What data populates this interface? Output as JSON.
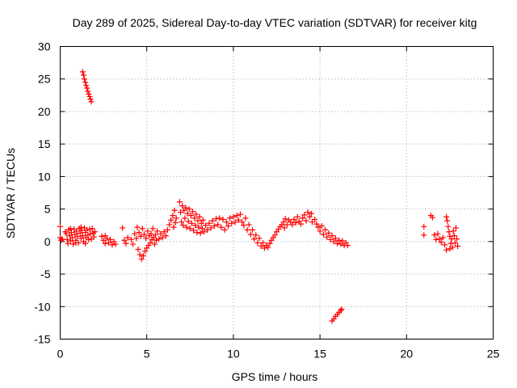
{
  "chart_data": {
    "type": "scatter",
    "title": "Day 289 of 2025, Sidereal Day-to-day VTEC variation (SDTVAR) for receiver kitg",
    "xlabel": "GPS time / hours",
    "ylabel": "SDTVAR / TECUs",
    "xlim": [
      0,
      25
    ],
    "ylim": [
      -15,
      30
    ],
    "xticks": [
      0,
      5,
      10,
      15,
      20,
      25
    ],
    "yticks": [
      -15,
      -10,
      -5,
      0,
      5,
      10,
      15,
      20,
      25,
      30
    ],
    "grid": true,
    "marker": "plus",
    "series": [
      {
        "name": "SDTVAR",
        "color": "#ff0000",
        "points": [
          [
            0.0,
            2.3
          ],
          [
            0.0,
            0.6
          ],
          [
            0.05,
            0.2
          ],
          [
            0.1,
            0.4
          ],
          [
            0.3,
            1.5
          ],
          [
            0.35,
            1.2
          ],
          [
            0.4,
            0.3
          ],
          [
            0.45,
            -0.3
          ],
          [
            0.5,
            1.8
          ],
          [
            0.55,
            0.9
          ],
          [
            0.6,
            0.1
          ],
          [
            0.65,
            1.4
          ],
          [
            0.7,
            0.6
          ],
          [
            0.75,
            -0.4
          ],
          [
            0.8,
            1.9
          ],
          [
            0.85,
            1.1
          ],
          [
            0.9,
            0.2
          ],
          [
            0.95,
            1.6
          ],
          [
            1.0,
            0.8
          ],
          [
            1.05,
            -0.2
          ],
          [
            1.1,
            2.0
          ],
          [
            1.15,
            1.3
          ],
          [
            1.2,
            0.5
          ],
          [
            1.25,
            1.7
          ],
          [
            1.3,
            0.9
          ],
          [
            1.35,
            0.0
          ],
          [
            1.4,
            2.1
          ],
          [
            1.45,
            1.4
          ],
          [
            1.5,
            0.6
          ],
          [
            1.55,
            1.8
          ],
          [
            1.6,
            1.0
          ],
          [
            1.65,
            0.3
          ],
          [
            1.7,
            1.9
          ],
          [
            1.75,
            1.2
          ],
          [
            1.8,
            0.4
          ],
          [
            1.85,
            2.0
          ],
          [
            1.9,
            1.3
          ],
          [
            1.95,
            0.7
          ],
          [
            2.0,
            1.5
          ],
          [
            1.45,
            -0.3
          ],
          [
            1.2,
            2.2
          ],
          [
            0.9,
            -0.2
          ],
          [
            0.6,
            2.0
          ],
          [
            1.3,
            26.1
          ],
          [
            1.35,
            25.6
          ],
          [
            1.4,
            25.0
          ],
          [
            1.45,
            24.5
          ],
          [
            1.5,
            24.0
          ],
          [
            1.55,
            23.6
          ],
          [
            1.6,
            23.1
          ],
          [
            1.65,
            22.7
          ],
          [
            1.7,
            22.3
          ],
          [
            1.75,
            21.9
          ],
          [
            1.8,
            21.5
          ],
          [
            2.4,
            0.8
          ],
          [
            2.5,
            0.2
          ],
          [
            2.6,
            -0.3
          ],
          [
            2.7,
            0.5
          ],
          [
            2.8,
            -0.2
          ],
          [
            2.9,
            0.3
          ],
          [
            3.0,
            -0.5
          ],
          [
            3.1,
            0.0
          ],
          [
            3.2,
            -0.4
          ],
          [
            2.6,
            0.9
          ],
          [
            3.6,
            2.1
          ],
          [
            3.7,
            0.2
          ],
          [
            3.8,
            -0.3
          ],
          [
            3.9,
            0.6
          ],
          [
            4.1,
            0.3
          ],
          [
            4.2,
            -0.4
          ],
          [
            4.3,
            1.2
          ],
          [
            4.4,
            0.5
          ],
          [
            4.45,
            2.2
          ],
          [
            4.5,
            -1.2
          ],
          [
            4.55,
            1.4
          ],
          [
            4.6,
            -2.0
          ],
          [
            4.65,
            0.8
          ],
          [
            4.7,
            -2.7
          ],
          [
            4.75,
            2.0
          ],
          [
            4.8,
            -2.2
          ],
          [
            4.85,
            1.1
          ],
          [
            4.9,
            -1.5
          ],
          [
            4.95,
            0.5
          ],
          [
            5.0,
            -1.0
          ],
          [
            5.05,
            1.6
          ],
          [
            5.1,
            -0.6
          ],
          [
            5.15,
            0.9
          ],
          [
            5.2,
            -0.2
          ],
          [
            5.25,
            1.2
          ],
          [
            5.3,
            0.3
          ],
          [
            5.35,
            2.0
          ],
          [
            5.4,
            0.6
          ],
          [
            5.45,
            -0.4
          ],
          [
            5.5,
            1.0
          ],
          [
            5.55,
            0.2
          ],
          [
            5.6,
            1.6
          ],
          [
            5.7,
            0.4
          ],
          [
            5.8,
            1.2
          ],
          [
            5.9,
            0.6
          ],
          [
            6.0,
            1.5
          ],
          [
            6.1,
            0.9
          ],
          [
            6.2,
            1.8
          ],
          [
            6.3,
            2.6
          ],
          [
            6.4,
            3.3
          ],
          [
            6.5,
            4.0
          ],
          [
            6.55,
            2.2
          ],
          [
            6.6,
            4.8
          ],
          [
            6.65,
            2.9
          ],
          [
            6.7,
            3.6
          ],
          [
            6.9,
            6.1
          ],
          [
            6.95,
            4.5
          ],
          [
            7.0,
            3.0
          ],
          [
            7.05,
            5.5
          ],
          [
            7.1,
            2.5
          ],
          [
            7.15,
            4.8
          ],
          [
            7.2,
            3.6
          ],
          [
            7.25,
            5.2
          ],
          [
            7.3,
            2.2
          ],
          [
            7.35,
            4.3
          ],
          [
            7.4,
            3.1
          ],
          [
            7.45,
            5.0
          ],
          [
            7.5,
            2.0
          ],
          [
            7.55,
            4.0
          ],
          [
            7.6,
            2.8
          ],
          [
            7.65,
            4.6
          ],
          [
            7.7,
            1.7
          ],
          [
            7.75,
            3.6
          ],
          [
            7.8,
            2.5
          ],
          [
            7.85,
            4.2
          ],
          [
            7.9,
            1.4
          ],
          [
            7.95,
            3.2
          ],
          [
            8.0,
            2.2
          ],
          [
            8.05,
            3.8
          ],
          [
            8.1,
            1.3
          ],
          [
            8.15,
            2.8
          ],
          [
            8.2,
            2.0
          ],
          [
            8.25,
            3.3
          ],
          [
            8.3,
            1.5
          ],
          [
            8.4,
            2.5
          ],
          [
            8.5,
            1.8
          ],
          [
            8.6,
            2.8
          ],
          [
            8.7,
            2.1
          ],
          [
            8.8,
            3.2
          ],
          [
            8.9,
            2.4
          ],
          [
            9.0,
            3.5
          ],
          [
            9.1,
            2.6
          ],
          [
            9.2,
            3.6
          ],
          [
            9.3,
            2.2
          ],
          [
            9.4,
            3.4
          ],
          [
            9.5,
            1.8
          ],
          [
            9.6,
            3.0
          ],
          [
            9.7,
            2.4
          ],
          [
            9.8,
            3.6
          ],
          [
            9.9,
            2.8
          ],
          [
            10.0,
            3.8
          ],
          [
            10.1,
            3.0
          ],
          [
            10.2,
            4.0
          ],
          [
            10.3,
            3.3
          ],
          [
            10.4,
            4.2
          ],
          [
            10.5,
            3.0
          ],
          [
            10.6,
            2.5
          ],
          [
            10.7,
            3.6
          ],
          [
            10.8,
            1.8
          ],
          [
            10.9,
            2.6
          ],
          [
            11.0,
            1.1
          ],
          [
            11.1,
            1.8
          ],
          [
            11.2,
            0.4
          ],
          [
            11.3,
            1.0
          ],
          [
            11.4,
            -0.2
          ],
          [
            11.5,
            0.5
          ],
          [
            11.6,
            -0.7
          ],
          [
            11.7,
            -0.2
          ],
          [
            11.8,
            -1.0
          ],
          [
            11.9,
            -0.6
          ],
          [
            12.0,
            -0.9
          ],
          [
            12.1,
            -0.3
          ],
          [
            12.2,
            0.2
          ],
          [
            12.3,
            0.6
          ],
          [
            12.4,
            1.0
          ],
          [
            12.5,
            1.5
          ],
          [
            12.6,
            1.9
          ],
          [
            12.7,
            2.3
          ],
          [
            12.8,
            2.6
          ],
          [
            12.9,
            3.0
          ],
          [
            13.0,
            3.5
          ],
          [
            12.95,
            2.1
          ],
          [
            13.1,
            2.6
          ],
          [
            13.2,
            3.3
          ],
          [
            13.3,
            3.0
          ],
          [
            13.4,
            2.6
          ],
          [
            13.5,
            3.4
          ],
          [
            13.6,
            2.9
          ],
          [
            13.7,
            3.8
          ],
          [
            13.8,
            3.1
          ],
          [
            13.9,
            2.7
          ],
          [
            14.0,
            3.6
          ],
          [
            14.1,
            4.1
          ],
          [
            14.2,
            3.2
          ],
          [
            14.3,
            4.5
          ],
          [
            14.4,
            3.8
          ],
          [
            14.5,
            4.3
          ],
          [
            14.55,
            3.0
          ],
          [
            14.7,
            3.4
          ],
          [
            14.8,
            2.7
          ],
          [
            14.9,
            2.2
          ],
          [
            15.0,
            1.6
          ],
          [
            15.1,
            2.4
          ],
          [
            15.2,
            1.1
          ],
          [
            15.3,
            1.8
          ],
          [
            15.4,
            0.7
          ],
          [
            15.5,
            1.3
          ],
          [
            15.6,
            0.3
          ],
          [
            15.7,
            0.9
          ],
          [
            15.8,
            0.0
          ],
          [
            15.9,
            0.5
          ],
          [
            16.0,
            -0.3
          ],
          [
            16.1,
            0.2
          ],
          [
            16.2,
            -0.4
          ],
          [
            16.3,
            0.1
          ],
          [
            16.4,
            -0.6
          ],
          [
            16.5,
            -0.2
          ],
          [
            16.6,
            -0.6
          ],
          [
            15.7,
            -12.2
          ],
          [
            15.8,
            -11.9
          ],
          [
            15.9,
            -11.5
          ],
          [
            16.0,
            -11.2
          ],
          [
            16.1,
            -10.9
          ],
          [
            16.2,
            -10.6
          ],
          [
            16.25,
            -10.4
          ],
          [
            21.0,
            2.3
          ],
          [
            21.0,
            1.0
          ],
          [
            21.4,
            4.0
          ],
          [
            21.5,
            3.7
          ],
          [
            21.6,
            1.0
          ],
          [
            21.7,
            0.3
          ],
          [
            21.8,
            1.2
          ],
          [
            21.9,
            0.4
          ],
          [
            22.0,
            -0.1
          ],
          [
            22.1,
            0.6
          ],
          [
            22.2,
            -0.5
          ],
          [
            22.3,
            3.8
          ],
          [
            22.35,
            3.2
          ],
          [
            22.4,
            2.3
          ],
          [
            22.45,
            1.5
          ],
          [
            22.5,
            0.8
          ],
          [
            22.55,
            -0.3
          ],
          [
            22.6,
            0.4
          ],
          [
            22.65,
            -0.9
          ],
          [
            22.7,
            1.6
          ],
          [
            22.75,
            0.9
          ],
          [
            22.8,
            -0.2
          ],
          [
            22.85,
            2.1
          ],
          [
            22.9,
            0.4
          ],
          [
            22.95,
            -0.7
          ],
          [
            22.3,
            -1.3
          ],
          [
            22.5,
            -1.1
          ]
        ]
      }
    ]
  }
}
